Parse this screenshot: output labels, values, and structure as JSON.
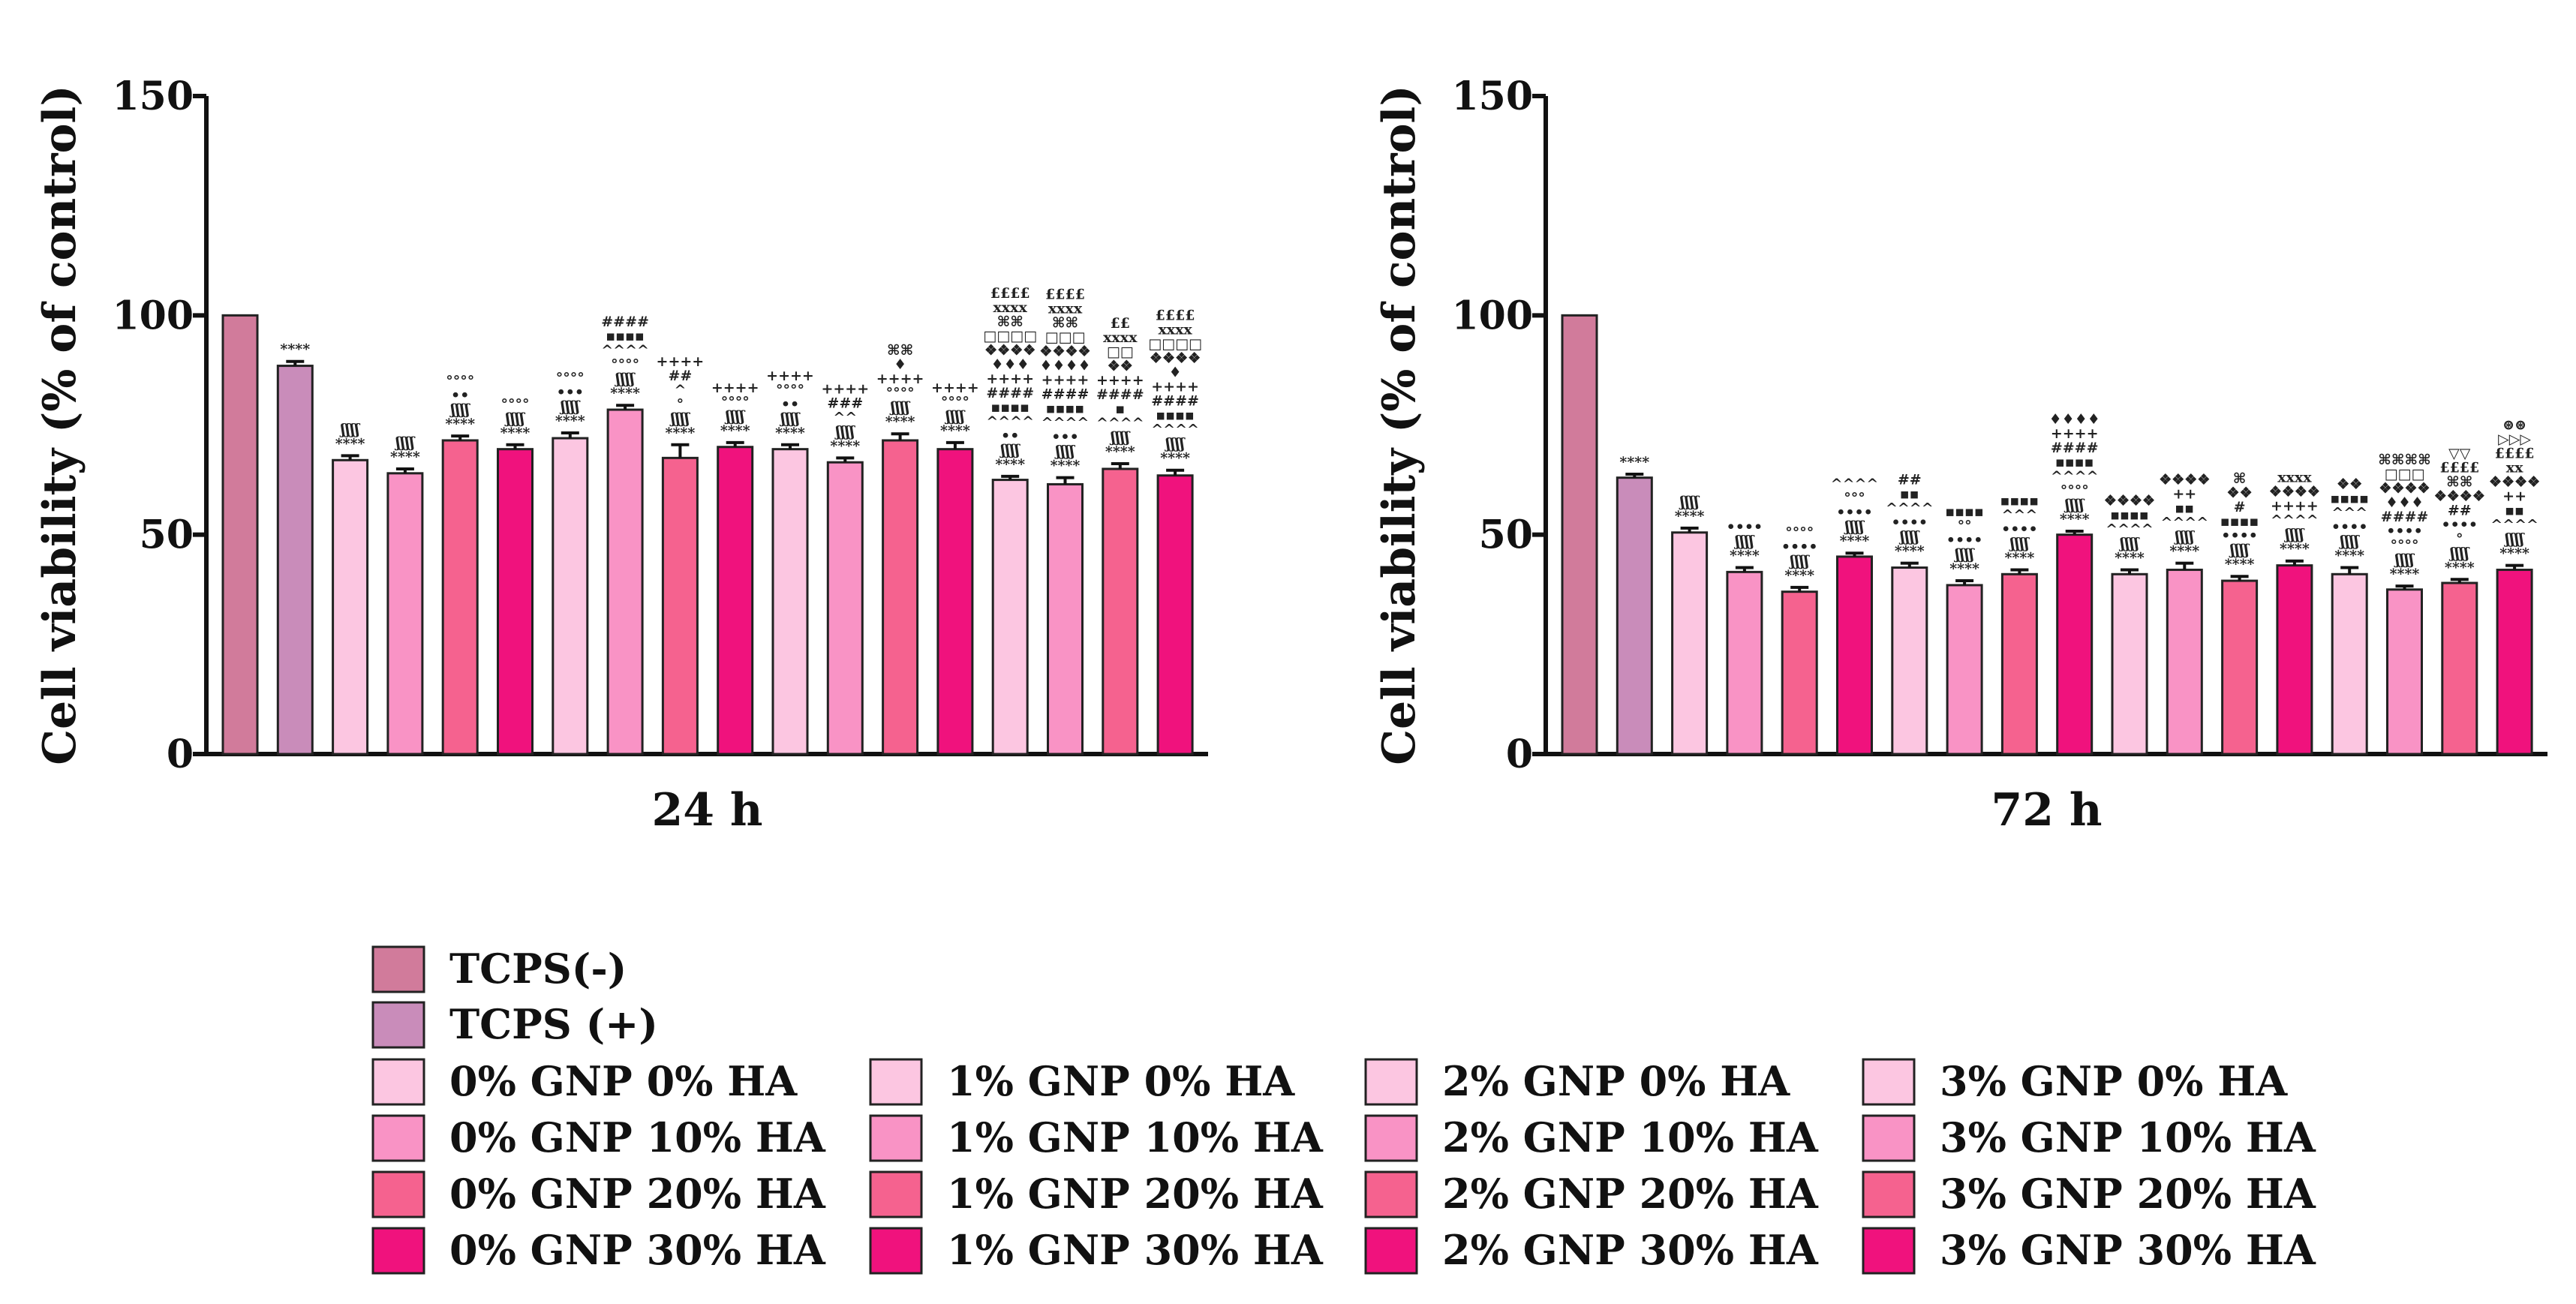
{
  "colors": {
    "tcps_neg": "#d17b9b",
    "tcps_pos": "#c98cba",
    "ha0": "#fcc6e1",
    "ha10": "#f993c5",
    "ha20": "#f5628f",
    "ha30": "#f0127d",
    "axis": "#111111",
    "error_bar": "#111111"
  },
  "chart_data": [
    {
      "type": "bar",
      "xlabel": "24 h",
      "ylabel": "Cell viability (% of control)",
      "ylim": [
        0,
        150
      ],
      "yticks": [
        "0",
        "50",
        "100",
        "150"
      ],
      "categories": [
        "TCPS(-)",
        "TCPS (+)",
        "0% GNP 0% HA",
        "0% GNP 10% HA",
        "0% GNP 20% HA",
        "0% GNP 30% HA",
        "1% GNP 0% HA",
        "1% GNP 10% HA",
        "1% GNP 20% HA",
        "1% GNP 30% HA",
        "2% GNP 0% HA",
        "2% GNP 10% HA",
        "2% GNP 20% HA",
        "2% GNP 30% HA",
        "3% GNP 0% HA",
        "3% GNP 10% HA",
        "3% GNP 20% HA",
        "3% GNP 30% HA"
      ],
      "values": [
        100,
        88.5,
        67,
        64,
        71.5,
        69.5,
        72,
        78.5,
        67.5,
        70,
        69.5,
        66.5,
        71.5,
        69.5,
        62.5,
        61.5,
        65,
        63.5
      ],
      "errors": [
        0,
        1,
        1,
        1,
        1,
        1,
        1.2,
        1,
        3,
        1,
        1,
        1,
        1.5,
        1.5,
        0.8,
        1.5,
        1.2,
        1.2
      ],
      "annotations": [
        [],
        [
          "****"
        ],
        [
          "****",
          "ʃʃʃʃ"
        ],
        [
          "****",
          "ʃʃʃʃ"
        ],
        [
          "****",
          "ʃʃʃʃ",
          "••",
          "°°°°"
        ],
        [
          "****",
          "ʃʃʃʃ",
          "°°°°"
        ],
        [
          "****",
          "ʃʃʃʃ",
          "•••",
          "°°°°"
        ],
        [
          "****",
          "ʃʃʃʃ",
          "°°°°",
          "^^^^",
          "▪▪▪▪",
          "####"
        ],
        [
          "****",
          "ʃʃʃʃ",
          "°",
          "^",
          "##",
          "++++"
        ],
        [
          "****",
          "ʃʃʃʃ",
          "°°°°",
          "++++"
        ],
        [
          "****",
          "ʃʃʃʃ",
          "••",
          "°°°°",
          "++++"
        ],
        [
          "****",
          "ʃʃʃʃ",
          "^^",
          "###",
          "++++"
        ],
        [
          "****",
          "ʃʃʃʃ",
          "°°°°",
          "++++",
          "♦",
          "⌘⌘"
        ],
        [
          "****",
          "ʃʃʃʃ",
          "°°°°",
          "++++"
        ],
        [
          "****",
          "ʃʃʃʃ",
          "••",
          "^^^^",
          "▪▪▪▪",
          "####",
          "++++",
          "♦♦♦",
          "❖❖❖❖",
          "□□□□",
          "⌘⌘",
          "xxxx",
          "££££"
        ],
        [
          "****",
          "ʃʃʃʃ",
          "•••",
          "^^^^",
          "▪▪▪▪",
          "####",
          "++++",
          "♦♦♦♦",
          "❖❖❖❖",
          "□□□",
          "⌘⌘",
          "xxxx",
          "££££"
        ],
        [
          "****",
          "ʃʃʃʃ",
          "^^^^",
          "▪",
          "####",
          "++++",
          "❖❖",
          "□□",
          "xxxx",
          "££"
        ],
        [
          "****",
          "ʃʃʃʃ",
          "^^^^",
          "▪▪▪▪",
          "####",
          "++++",
          "♦",
          "❖❖❖❖",
          "□□□□",
          "xxxx",
          "££££"
        ]
      ]
    },
    {
      "type": "bar",
      "xlabel": "72 h",
      "ylabel": "Cell viability (% of control)",
      "ylim": [
        0,
        150
      ],
      "yticks": [
        "0",
        "50",
        "100",
        "150"
      ],
      "categories": [
        "TCPS(-)",
        "TCPS (+)",
        "0% GNP 0% HA",
        "0% GNP 10% HA",
        "0% GNP 20% HA",
        "0% GNP 30% HA",
        "1% GNP 0% HA",
        "1% GNP 10% HA",
        "1% GNP 20% HA",
        "1% GNP 30% HA",
        "2% GNP 0% HA",
        "2% GNP 10% HA",
        "2% GNP 20% HA",
        "2% GNP 30% HA",
        "3% GNP 0% HA",
        "3% GNP 10% HA",
        "3% GNP 20% HA",
        "3% GNP 30% HA"
      ],
      "values": [
        100,
        63,
        50.5,
        41.5,
        37,
        45,
        42.5,
        38.5,
        41,
        50,
        41,
        42,
        39.5,
        43,
        41,
        37.5,
        39,
        42
      ],
      "errors": [
        0,
        0.8,
        1,
        1,
        1,
        0.8,
        1,
        1,
        1,
        0.8,
        1,
        1.5,
        1,
        1,
        1.5,
        0.8,
        0.8,
        1
      ],
      "annotations": [
        [],
        [
          "****"
        ],
        [
          "****",
          "ʃʃʃʃ"
        ],
        [
          "****",
          "ʃʃʃʃ",
          "••••"
        ],
        [
          "****",
          "ʃʃʃʃ",
          "••••",
          "°°°°"
        ],
        [
          "****",
          "ʃʃʃʃ",
          "••••",
          "°°°",
          "^^^^"
        ],
        [
          "****",
          "ʃʃʃʃ",
          "••••",
          "^^^^",
          "▪▪",
          "##"
        ],
        [
          "****",
          "ʃʃʃʃ",
          "••••",
          "°°",
          "▪▪▪▪"
        ],
        [
          "****",
          "ʃʃʃʃ",
          "••••",
          "^^^",
          "▪▪▪▪"
        ],
        [
          "****",
          "ʃʃʃʃ",
          "°°°°",
          "^^^^",
          "▪▪▪▪",
          "####",
          "++++",
          "♦♦♦♦"
        ],
        [
          "****",
          "ʃʃʃʃ",
          "^^^^",
          "▪▪▪▪",
          "❖❖❖❖"
        ],
        [
          "****",
          "ʃʃʃʃ",
          "^^^^",
          "▪▪",
          "++",
          "❖❖❖❖"
        ],
        [
          "****",
          "ʃʃʃʃ",
          "••••",
          "▪▪▪▪",
          "#",
          "❖❖",
          "⌘"
        ],
        [
          "****",
          "ʃʃʃʃ",
          "^^^^",
          "++++",
          "❖❖❖❖",
          "xxxx"
        ],
        [
          "****",
          "ʃʃʃʃ",
          "••••",
          "^^^",
          "▪▪▪▪",
          "❖❖"
        ],
        [
          "****",
          "ʃʃʃʃ",
          "°°°°",
          "••••",
          "####",
          "♦♦♦",
          "❖❖❖❖",
          "□□□",
          "⌘⌘⌘⌘"
        ],
        [
          "****",
          "ʃʃʃʃ",
          "°",
          "••••",
          "##",
          "❖❖❖❖",
          "⌘⌘",
          "££££",
          "▽▽"
        ],
        [
          "****",
          "ʃʃʃʃ",
          "^^^^",
          "▪▪",
          "++",
          "❖❖❖❖",
          "xx",
          "££££",
          "▷▷▷",
          "⊛⊛"
        ]
      ]
    }
  ],
  "legend": [
    {
      "label": "TCPS(-)",
      "color_key": "tcps_neg"
    },
    {
      "label": "TCPS (+)",
      "color_key": "tcps_pos"
    },
    {
      "label": "0% GNP 0% HA",
      "color_key": "ha0"
    },
    {
      "label": "0% GNP 10% HA",
      "color_key": "ha10"
    },
    {
      "label": "0% GNP 20% HA",
      "color_key": "ha20"
    },
    {
      "label": "0% GNP 30% HA",
      "color_key": "ha30"
    },
    {
      "label": "1% GNP 0% HA",
      "color_key": "ha0"
    },
    {
      "label": "1% GNP 10% HA",
      "color_key": "ha10"
    },
    {
      "label": "1% GNP 20% HA",
      "color_key": "ha20"
    },
    {
      "label": "1% GNP 30% HA",
      "color_key": "ha30"
    },
    {
      "label": "2% GNP 0% HA",
      "color_key": "ha0"
    },
    {
      "label": "2% GNP 10% HA",
      "color_key": "ha10"
    },
    {
      "label": "2% GNP 20% HA",
      "color_key": "ha20"
    },
    {
      "label": "2% GNP 30% HA",
      "color_key": "ha30"
    },
    {
      "label": "3% GNP 0% HA",
      "color_key": "ha0"
    },
    {
      "label": "3% GNP 10% HA",
      "color_key": "ha10"
    },
    {
      "label": "3% GNP 20% HA",
      "color_key": "ha20"
    },
    {
      "label": "3% GNP 30% HA",
      "color_key": "ha30"
    }
  ]
}
